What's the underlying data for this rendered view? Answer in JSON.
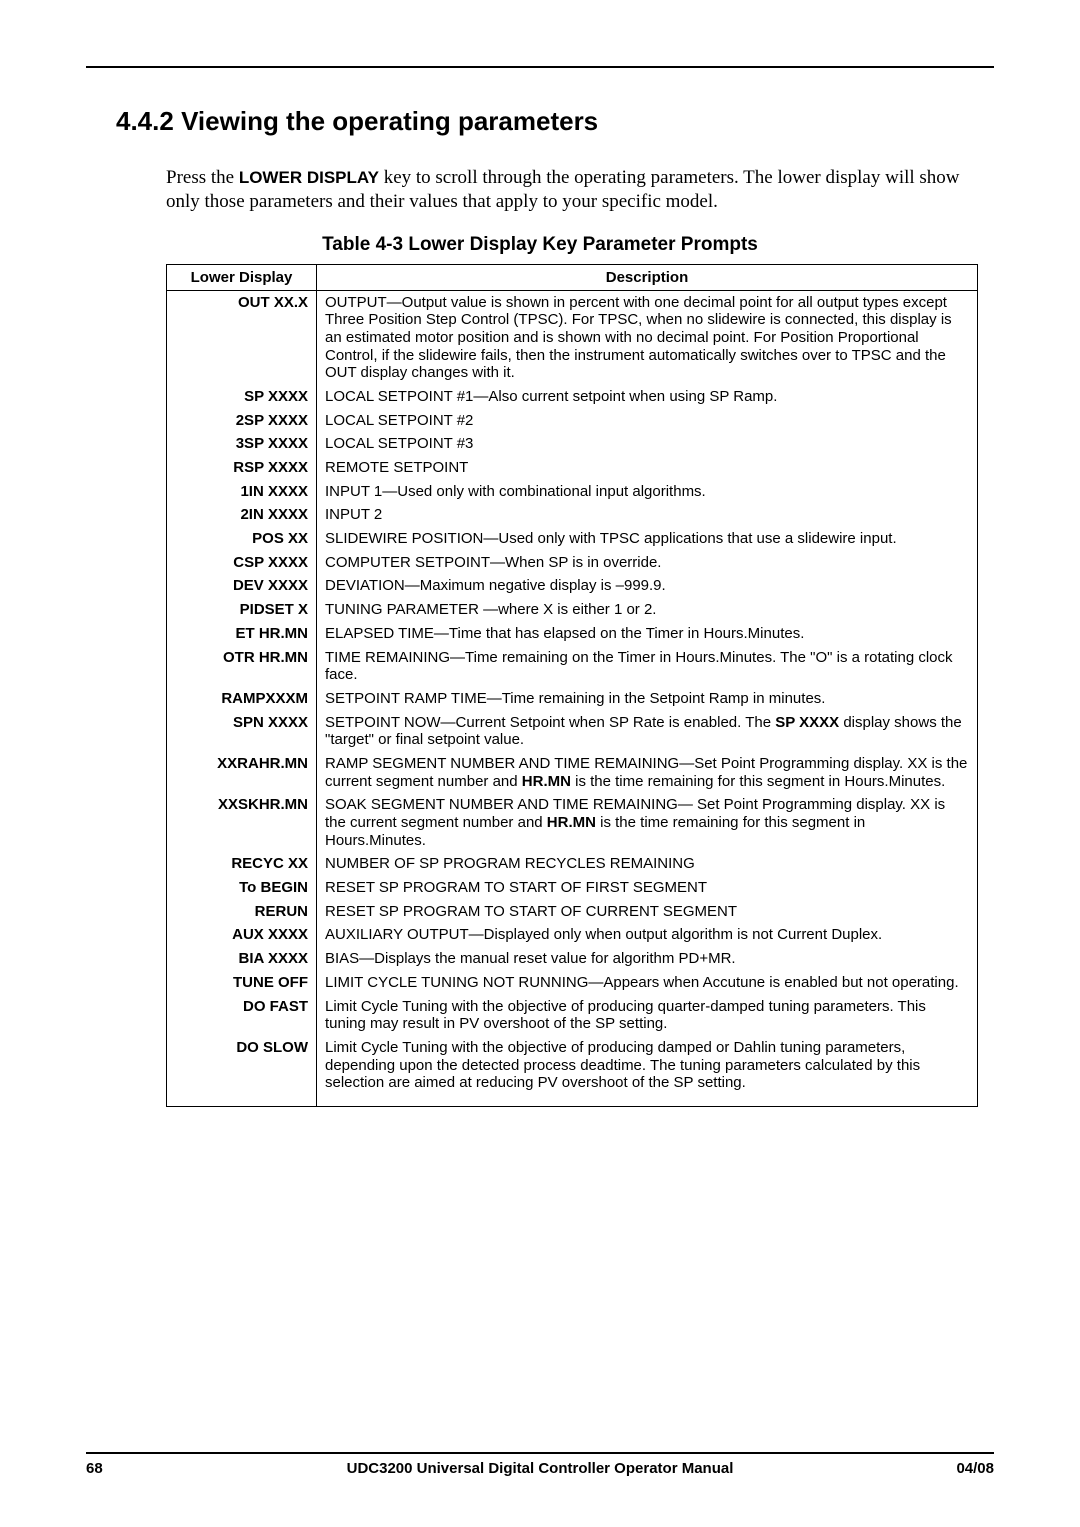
{
  "section": {
    "number": "4.4.2",
    "title": "Viewing the operating parameters",
    "intro_pre": "Press the ",
    "intro_kw": "LOWER DISPLAY",
    "intro_post": " key to scroll through the operating parameters. The lower display will show only those parameters and their values that apply to your specific model."
  },
  "table": {
    "caption": "Table 4-3  Lower Display Key Parameter Prompts",
    "headers": {
      "prompt": "Lower Display",
      "description": "Description"
    },
    "rows": [
      {
        "prompt": "OUT XX.X",
        "desc": "OUTPUT—Output value is shown in percent with one decimal point for all output types except Three Position Step Control (TPSC).  For TPSC, when no slidewire is connected, this display is an estimated motor position and is shown with no decimal point.  For Position Proportional Control, if the slidewire fails, then the instrument automatically switches over to TPSC and the OUT display changes with it."
      },
      {
        "prompt": "SP XXXX",
        "desc": "LOCAL SETPOINT #1—Also current setpoint when using SP Ramp."
      },
      {
        "prompt": "2SP XXXX",
        "desc": "LOCAL SETPOINT #2"
      },
      {
        "prompt": "3SP XXXX",
        "desc": "LOCAL SETPOINT #3"
      },
      {
        "prompt": "RSP XXXX",
        "desc": "REMOTE SETPOINT"
      },
      {
        "prompt": "1IN XXXX",
        "desc": "INPUT 1—Used only with combinational input algorithms."
      },
      {
        "prompt": "2IN XXXX",
        "desc": "INPUT 2"
      },
      {
        "prompt": "POS  XX",
        "desc": "SLIDEWIRE POSITION—Used only with TPSC applications that use a slidewire input."
      },
      {
        "prompt": "CSP XXXX",
        "desc": "COMPUTER SETPOINT—When SP is in override."
      },
      {
        "prompt": "DEV XXXX",
        "desc": "DEVIATION—Maximum negative display is –999.9."
      },
      {
        "prompt": "PIDSET X",
        "desc": "TUNING PARAMETER —where X is either 1 or 2."
      },
      {
        "prompt": "ET HR.MN",
        "desc": "ELAPSED TIME—Time that has elapsed on the Timer in Hours.Minutes."
      },
      {
        "prompt": "OTR HR.MN",
        "desc": "TIME REMAINING—Time remaining on the Timer in Hours.Minutes. The \"O\" is a rotating clock face."
      },
      {
        "prompt": "RAMPXXXM",
        "desc": "SETPOINT RAMP TIME—Time remaining in the Setpoint Ramp in minutes."
      },
      {
        "prompt": "SPN XXXX",
        "desc_html": "SETPOINT NOW—Current Setpoint when SP Rate is enabled.  The <b>SP XXXX</b> display shows the \"target\" or final setpoint value."
      },
      {
        "prompt": "XXRAHR.MN",
        "desc_html": "RAMP SEGMENT NUMBER AND TIME REMAINING—Set Point Programming display. XX is the current segment number and <b>HR.MN</b> is the time remaining for this segment in Hours.Minutes."
      },
      {
        "prompt": "XXSKHR.MN",
        "desc_html": "SOAK SEGMENT NUMBER AND TIME REMAINING— Set Point Programming display. XX is the current segment number and <b>HR.MN</b> is the time remaining for this segment in Hours.Minutes."
      },
      {
        "prompt": "RECYC XX",
        "desc": "NUMBER OF SP PROGRAM RECYCLES REMAINING"
      },
      {
        "prompt": "To BEGIN",
        "desc": "RESET SP PROGRAM TO START OF FIRST SEGMENT"
      },
      {
        "prompt": "RERUN",
        "desc": "RESET SP PROGRAM TO START OF CURRENT SEGMENT"
      },
      {
        "prompt": "AUX XXXX",
        "desc": "AUXILIARY OUTPUT—Displayed only when output algorithm is not Current Duplex."
      },
      {
        "prompt": "BIA XXXX",
        "desc": "BIAS—Displays the manual reset value for algorithm PD+MR."
      },
      {
        "prompt": "TUNE OFF",
        "desc": "LIMIT CYCLE TUNING NOT RUNNING—Appears when Accutune is enabled but not operating."
      },
      {
        "prompt": "DO FAST",
        "desc": "Limit Cycle Tuning with the objective of producing quarter-damped tuning parameters. This tuning may result in PV overshoot of the SP setting."
      },
      {
        "prompt": "DO SLOW",
        "desc": "Limit Cycle Tuning with the objective of producing damped or Dahlin tuning parameters, depending upon the detected process deadtime.  The tuning parameters calculated by this selection are aimed at reducing PV overshoot of the SP setting."
      }
    ]
  },
  "footer": {
    "page": "68",
    "title": "UDC3200 Universal Digital Controller Operator Manual",
    "date": "04/08"
  }
}
